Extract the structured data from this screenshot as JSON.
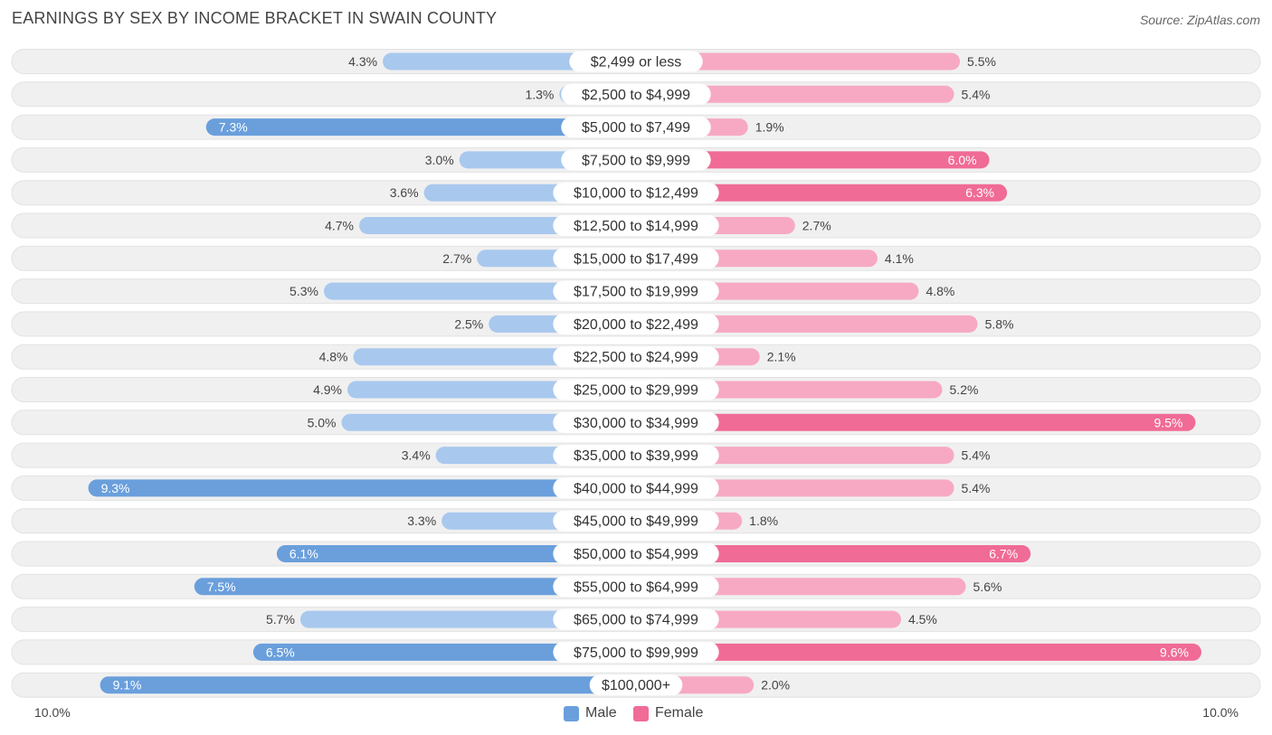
{
  "title": "EARNINGS BY SEX BY INCOME BRACKET IN SWAIN COUNTY",
  "source": "Source: ZipAtlas.com",
  "colors": {
    "male_strong": "#6a9fdc",
    "male_light": "#a8c8ee",
    "female_strong": "#f06b96",
    "female_light": "#f7a9c3",
    "row_bg": "#f0f0f0",
    "row_border": "#e2e2e2"
  },
  "legend": {
    "male_label": "Male",
    "female_label": "Female"
  },
  "axis": {
    "left_label": "10.0%",
    "right_label": "10.0%"
  },
  "chart_data": {
    "type": "bar",
    "orientation": "horizontal-diverging",
    "title": "EARNINGS BY SEX BY INCOME BRACKET IN SWAIN COUNTY",
    "xlim": [
      0,
      10
    ],
    "unit": "%",
    "categories": [
      "$2,499 or less",
      "$2,500 to $4,999",
      "$5,000 to $7,499",
      "$7,500 to $9,999",
      "$10,000 to $12,499",
      "$12,500 to $14,999",
      "$15,000 to $17,499",
      "$17,500 to $19,999",
      "$20,000 to $22,499",
      "$22,500 to $24,999",
      "$25,000 to $29,999",
      "$30,000 to $34,999",
      "$35,000 to $39,999",
      "$40,000 to $44,999",
      "$45,000 to $49,999",
      "$50,000 to $54,999",
      "$55,000 to $64,999",
      "$65,000 to $74,999",
      "$75,000 to $99,999",
      "$100,000+"
    ],
    "series": [
      {
        "name": "Male",
        "values": [
          4.3,
          1.3,
          7.3,
          3.0,
          3.6,
          4.7,
          2.7,
          5.3,
          2.5,
          4.8,
          4.9,
          5.0,
          3.4,
          9.3,
          3.3,
          6.1,
          7.5,
          5.7,
          6.5,
          9.1
        ],
        "labels": [
          "4.3%",
          "1.3%",
          "7.3%",
          "3.0%",
          "3.6%",
          "4.7%",
          "2.7%",
          "5.3%",
          "2.5%",
          "4.8%",
          "4.9%",
          "5.0%",
          "3.4%",
          "9.3%",
          "3.3%",
          "6.1%",
          "7.5%",
          "5.7%",
          "6.5%",
          "9.1%"
        ]
      },
      {
        "name": "Female",
        "values": [
          5.5,
          5.4,
          1.9,
          6.0,
          6.3,
          2.7,
          4.1,
          4.8,
          5.8,
          2.1,
          5.2,
          9.5,
          5.4,
          5.4,
          1.8,
          6.7,
          5.6,
          4.5,
          9.6,
          2.0
        ],
        "labels": [
          "5.5%",
          "5.4%",
          "1.9%",
          "6.0%",
          "6.3%",
          "2.7%",
          "4.1%",
          "4.8%",
          "5.8%",
          "2.1%",
          "5.2%",
          "9.5%",
          "5.4%",
          "5.4%",
          "1.8%",
          "6.7%",
          "5.6%",
          "4.5%",
          "9.6%",
          "2.0%"
        ]
      }
    ],
    "legend_position": "bottom-center"
  }
}
